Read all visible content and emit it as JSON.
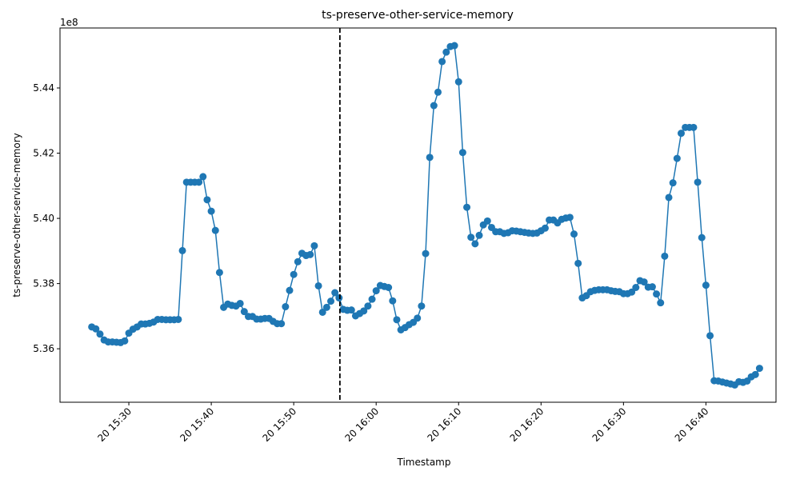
{
  "chart_data": {
    "type": "line",
    "title": "ts-preserve-other-service-memory",
    "x_label": "Timestamp",
    "y_label": "ts-preserve-other-service-memory",
    "y_offset_label": "1e8",
    "x": [
      25.5,
      26,
      26.5,
      27,
      27.5,
      28,
      28.5,
      29,
      29.5,
      30,
      30.5,
      31,
      31.5,
      32,
      32.5,
      33,
      33.5,
      34,
      34.5,
      35,
      35.5,
      36,
      36.5,
      37,
      37.5,
      38,
      38.5,
      39,
      39.5,
      40,
      40.5,
      41,
      41.5,
      42,
      42.5,
      43,
      43.5,
      44,
      44.5,
      45,
      45.5,
      46,
      46.5,
      47,
      47.5,
      48,
      48.5,
      49,
      49.5,
      50,
      50.5,
      51,
      51.5,
      52,
      52.5,
      53,
      53.5,
      54,
      54.5,
      55,
      55.5,
      56,
      56.5,
      57,
      57.5,
      58,
      58.5,
      59,
      59.5,
      60,
      60.5,
      61,
      61.5,
      62,
      62.5,
      63,
      63.5,
      64,
      64.5,
      65,
      65.5,
      66,
      66.5,
      67,
      67.5,
      68,
      68.5,
      69,
      69.5,
      70,
      70.5,
      71,
      71.5,
      72,
      72.5,
      73,
      73.5,
      74,
      74.5,
      75,
      75.5,
      76,
      76.5,
      77,
      77.5,
      78,
      78.5,
      79,
      79.5,
      80,
      80.5,
      81,
      81.5,
      82,
      82.5,
      83,
      83.5,
      84,
      84.5,
      85,
      85.5,
      86,
      86.5,
      87,
      87.5,
      88,
      88.5,
      89,
      89.5,
      90,
      90.5,
      91,
      91.5,
      92,
      92.5,
      93,
      93.5,
      94,
      94.5,
      95,
      95.5,
      96,
      96.5,
      97,
      97.5,
      98,
      98.5,
      99,
      99.5,
      100,
      100.5,
      101,
      101.5,
      102,
      102.5,
      103,
      103.5,
      104,
      104.5,
      105,
      105.5,
      106,
      106.5
    ],
    "series": [
      {
        "name": "ts-preserve-other-service-memory",
        "color": "#1f77b4",
        "values": [
          5.3667,
          5.3661,
          5.3645,
          5.3627,
          5.3621,
          5.3621,
          5.362,
          5.3619,
          5.3624,
          5.3648,
          5.366,
          5.3667,
          5.3676,
          5.3676,
          5.3678,
          5.3682,
          5.369,
          5.369,
          5.3689,
          5.3689,
          5.3689,
          5.369,
          5.3901,
          5.4111,
          5.4111,
          5.4111,
          5.4111,
          5.4128,
          5.4057,
          5.4022,
          5.3963,
          5.3834,
          5.3727,
          5.3737,
          5.3733,
          5.3731,
          5.3739,
          5.3714,
          5.3699,
          5.3699,
          5.3691,
          5.3691,
          5.3693,
          5.3693,
          5.3684,
          5.3677,
          5.3677,
          5.3729,
          5.3779,
          5.3828,
          5.3867,
          5.3893,
          5.3886,
          5.3889,
          5.3916,
          5.3793,
          5.3712,
          5.3727,
          5.3746,
          5.3772,
          5.3756,
          5.3721,
          5.3718,
          5.3719,
          5.3701,
          5.3708,
          5.3716,
          5.3731,
          5.3752,
          5.3778,
          5.3794,
          5.3791,
          5.3788,
          5.3747,
          5.3689,
          5.3658,
          5.3665,
          5.3674,
          5.3681,
          5.3694,
          5.3731,
          5.3892,
          5.4187,
          5.4346,
          5.4387,
          5.4481,
          5.451,
          5.4527,
          5.453,
          5.4419,
          5.4202,
          5.4034,
          5.3942,
          5.3922,
          5.3948,
          5.398,
          5.3992,
          5.3972,
          5.3959,
          5.3959,
          5.3954,
          5.3956,
          5.3962,
          5.3961,
          5.3959,
          5.3957,
          5.3955,
          5.3954,
          5.3955,
          5.3962,
          5.397,
          5.3995,
          5.3995,
          5.3986,
          5.3997,
          5.4001,
          5.4003,
          5.3952,
          5.3862,
          5.3756,
          5.3763,
          5.3775,
          5.3779,
          5.3781,
          5.3781,
          5.3781,
          5.3778,
          5.3776,
          5.3775,
          5.3769,
          5.3769,
          5.3774,
          5.3788,
          5.3809,
          5.3805,
          5.3789,
          5.379,
          5.3768,
          5.3741,
          5.3884,
          5.4064,
          5.4109,
          5.4184,
          5.4261,
          5.4279,
          5.4279,
          5.4279,
          5.4111,
          5.3941,
          5.3795,
          5.364,
          5.3502,
          5.3501,
          5.3498,
          5.3495,
          5.3492,
          5.3489,
          5.3499,
          5.3497,
          5.3501,
          5.3514,
          5.3521,
          5.354
        ]
      }
    ],
    "xlim": [
      21.65,
      108.5
    ],
    "ylim": [
      5.3436,
      5.4584
    ],
    "xticks": [
      {
        "value": 30,
        "label": "20 15:30"
      },
      {
        "value": 40,
        "label": "20 15:40"
      },
      {
        "value": 50,
        "label": "20 15:50"
      },
      {
        "value": 60,
        "label": "20 16:00"
      },
      {
        "value": 70,
        "label": "20 16:10"
      },
      {
        "value": 80,
        "label": "20 16:20"
      },
      {
        "value": 90,
        "label": "20 16:30"
      },
      {
        "value": 100,
        "label": "20 16:40"
      }
    ],
    "yticks": [
      5.36,
      5.38,
      {
        "value": 5.4,
        "label": "5.40"
      },
      5.42,
      5.44
    ],
    "vline_x": 55.6,
    "vline_color": "#000000"
  }
}
